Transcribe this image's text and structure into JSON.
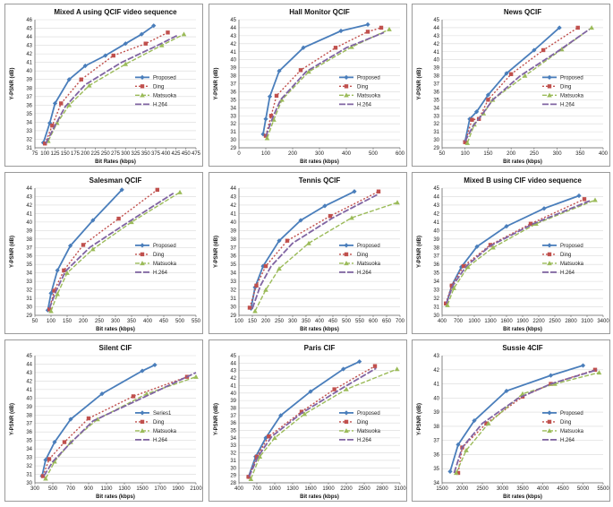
{
  "colors": {
    "proposed": "#4a7ebb",
    "ding": "#c0504d",
    "matsuoka": "#9bbb59",
    "h264": "#8064a2"
  },
  "chart_data": [
    {
      "type": "line",
      "title": "Mixed A using QCIF video sequence",
      "xlabel": "Bit Rates (kbps)",
      "ylabel": "Y-PSNR (dB)",
      "xlim": [
        75,
        475
      ],
      "ylim": [
        31,
        46
      ],
      "xticks": [
        75,
        100,
        125,
        150,
        175,
        200,
        225,
        250,
        275,
        300,
        325,
        350,
        375,
        400,
        425,
        450,
        475
      ],
      "yticks": [
        31,
        32,
        33,
        34,
        35,
        36,
        37,
        38,
        39,
        40,
        41,
        42,
        43,
        44,
        45,
        46
      ],
      "legend": "right",
      "series": [
        {
          "name": "Proposed",
          "style": "proposed",
          "x": [
            96,
            112,
            125,
            160,
            200,
            250,
            300,
            340,
            370
          ],
          "y": [
            31.6,
            33.9,
            36.2,
            39.0,
            40.6,
            41.8,
            43.2,
            44.3,
            45.3
          ]
        },
        {
          "name": "Ding",
          "style": "ding",
          "x": [
            100,
            118,
            140,
            190,
            270,
            350,
            405
          ],
          "y": [
            31.5,
            33.6,
            36.2,
            39.0,
            41.8,
            43.2,
            44.5
          ]
        },
        {
          "name": "Matsuoka",
          "style": "matsuoka",
          "x": [
            108,
            130,
            160,
            210,
            300,
            390,
            445
          ],
          "y": [
            31.8,
            33.9,
            36.0,
            38.3,
            40.8,
            43.0,
            44.3
          ]
        },
        {
          "name": "H.264",
          "style": "h264",
          "x": [
            102,
            124,
            150,
            200,
            290,
            380,
            430
          ],
          "y": [
            31.5,
            33.5,
            35.8,
            38.4,
            41.0,
            43.0,
            44.2
          ]
        }
      ]
    },
    {
      "type": "line",
      "title": "Hall Monitor QCIF",
      "xlabel": "Bit rates (kbps)",
      "ylabel": "Y-PSNR (dB)",
      "xlim": [
        0,
        600
      ],
      "ylim": [
        29,
        45
      ],
      "xticks": [
        0,
        100,
        200,
        300,
        400,
        500,
        600
      ],
      "yticks": [
        29,
        30,
        31,
        32,
        33,
        34,
        35,
        36,
        37,
        38,
        39,
        40,
        41,
        42,
        43,
        44,
        45
      ],
      "legend": "right",
      "series": [
        {
          "name": "Proposed",
          "style": "proposed",
          "x": [
            90,
            100,
            115,
            150,
            240,
            380,
            480
          ],
          "y": [
            30.7,
            32.6,
            35.4,
            38.6,
            41.5,
            43.6,
            44.4
          ]
        },
        {
          "name": "Ding",
          "style": "ding",
          "x": [
            100,
            120,
            140,
            230,
            360,
            480,
            530
          ],
          "y": [
            30.5,
            33.0,
            35.5,
            38.7,
            41.5,
            43.5,
            44.0
          ]
        },
        {
          "name": "Matsuoka",
          "style": "matsuoka",
          "x": [
            105,
            130,
            160,
            260,
            420,
            560
          ],
          "y": [
            30.2,
            32.5,
            35.0,
            38.5,
            41.6,
            43.8
          ]
        },
        {
          "name": "H.264",
          "style": "h264",
          "x": [
            100,
            125,
            155,
            250,
            400,
            540
          ],
          "y": [
            30.4,
            32.7,
            35.0,
            38.5,
            41.5,
            43.4
          ]
        }
      ]
    },
    {
      "type": "line",
      "title": "News QCIF",
      "xlabel": "Bit rates (kbps)",
      "ylabel": "Y-PSNR (dB)",
      "xlim": [
        50,
        400
      ],
      "ylim": [
        29,
        45
      ],
      "xticks": [
        50,
        100,
        150,
        200,
        250,
        300,
        350,
        400
      ],
      "yticks": [
        29,
        30,
        31,
        32,
        33,
        34,
        35,
        36,
        37,
        38,
        39,
        40,
        41,
        42,
        43,
        44,
        45
      ],
      "legend": "right",
      "series": [
        {
          "name": "Proposed",
          "style": "proposed",
          "x": [
            100,
            110,
            125,
            150,
            190,
            250,
            305
          ],
          "y": [
            29.8,
            32.6,
            33.5,
            35.6,
            38.3,
            41.2,
            44.0
          ]
        },
        {
          "name": "Ding",
          "style": "ding",
          "x": [
            100,
            115,
            130,
            150,
            200,
            270,
            345
          ],
          "y": [
            29.7,
            32.5,
            32.6,
            35.0,
            38.2,
            41.2,
            44.0
          ]
        },
        {
          "name": "Matsuoka",
          "style": "matsuoka",
          "x": [
            105,
            120,
            140,
            160,
            230,
            310,
            375
          ],
          "y": [
            29.6,
            31.9,
            33.3,
            35.0,
            38.0,
            41.3,
            44.0
          ]
        },
        {
          "name": "H.264",
          "style": "h264",
          "x": [
            100,
            118,
            135,
            160,
            220,
            300,
            370
          ],
          "y": [
            29.8,
            31.8,
            33.0,
            35.0,
            38.0,
            41.0,
            43.8
          ]
        }
      ]
    },
    {
      "type": "line",
      "title": "Salesman QCIF",
      "xlabel": "Bit rates (kbps)",
      "ylabel": "Y-PSNR (dB)",
      "xlim": [
        50,
        550
      ],
      "ylim": [
        29,
        44
      ],
      "xticks": [
        50,
        100,
        150,
        200,
        250,
        300,
        350,
        400,
        450,
        500,
        550
      ],
      "yticks": [
        29,
        30,
        31,
        32,
        33,
        34,
        35,
        36,
        37,
        38,
        39,
        40,
        41,
        42,
        43,
        44
      ],
      "legend": "right",
      "series": [
        {
          "name": "Proposed",
          "style": "proposed",
          "x": [
            90,
            100,
            120,
            160,
            230,
            320
          ],
          "y": [
            29.6,
            31.6,
            34.3,
            37.2,
            40.2,
            43.8
          ]
        },
        {
          "name": "Ding",
          "style": "ding",
          "x": [
            95,
            110,
            140,
            200,
            310,
            430
          ],
          "y": [
            29.7,
            31.9,
            34.3,
            37.3,
            40.4,
            43.8
          ]
        },
        {
          "name": "Matsuoka",
          "style": "matsuoka",
          "x": [
            100,
            120,
            150,
            230,
            350,
            500
          ],
          "y": [
            29.5,
            31.5,
            34.0,
            36.8,
            40.0,
            43.5
          ]
        },
        {
          "name": "H.264",
          "style": "h264",
          "x": [
            95,
            115,
            145,
            220,
            340,
            480
          ],
          "y": [
            29.8,
            31.8,
            34.2,
            37.0,
            40.0,
            43.4
          ]
        }
      ]
    },
    {
      "type": "line",
      "title": "Tennis QCIF",
      "xlabel": "Bit rates (kbps)",
      "ylabel": "Y-PSNR (dB)",
      "xlim": [
        100,
        700
      ],
      "ylim": [
        29,
        44
      ],
      "xticks": [
        100,
        150,
        200,
        250,
        300,
        350,
        400,
        450,
        500,
        550,
        600,
        650,
        700
      ],
      "yticks": [
        29,
        30,
        31,
        32,
        33,
        34,
        35,
        36,
        37,
        38,
        39,
        40,
        41,
        42,
        43,
        44
      ],
      "legend": "right",
      "series": [
        {
          "name": "Proposed",
          "style": "proposed",
          "x": [
            145,
            160,
            190,
            250,
            330,
            420,
            530
          ],
          "y": [
            29.8,
            32.3,
            34.8,
            37.8,
            40.2,
            41.9,
            43.6
          ]
        },
        {
          "name": "Ding",
          "style": "ding",
          "x": [
            140,
            165,
            200,
            280,
            440,
            620
          ],
          "y": [
            29.9,
            32.5,
            34.8,
            37.8,
            40.7,
            43.6
          ]
        },
        {
          "name": "Matsuoka",
          "style": "matsuoka",
          "x": [
            160,
            200,
            250,
            360,
            520,
            690
          ],
          "y": [
            29.5,
            32.0,
            34.5,
            37.5,
            40.5,
            42.3
          ]
        },
        {
          "name": "H.264",
          "style": "h264",
          "x": [
            150,
            180,
            220,
            300,
            450,
            620
          ],
          "y": [
            29.8,
            32.5,
            34.8,
            37.5,
            40.5,
            43.3
          ]
        }
      ]
    },
    {
      "type": "line",
      "title": "Mixed B using CIF video sequence",
      "xlabel": "Bit rates (kbps)",
      "ylabel": "Y-PSNR (dB)",
      "xlim": [
        400,
        3400
      ],
      "ylim": [
        30,
        45
      ],
      "xticks": [
        400,
        700,
        1000,
        1300,
        1600,
        1900,
        2200,
        2500,
        2800,
        3100,
        3400
      ],
      "yticks": [
        30,
        31,
        32,
        33,
        34,
        35,
        36,
        37,
        38,
        39,
        40,
        41,
        42,
        43,
        44,
        45
      ],
      "legend": "right",
      "series": [
        {
          "name": "Proposed",
          "style": "proposed",
          "x": [
            480,
            580,
            760,
            1050,
            1600,
            2300,
            2950
          ],
          "y": [
            31.3,
            33.5,
            35.7,
            38.1,
            40.5,
            42.6,
            44.1
          ]
        },
        {
          "name": "Ding",
          "style": "ding",
          "x": [
            470,
            580,
            800,
            1300,
            2050,
            3050
          ],
          "y": [
            31.4,
            33.5,
            35.8,
            38.3,
            40.8,
            43.7
          ]
        },
        {
          "name": "Matsuoka",
          "style": "matsuoka",
          "x": [
            500,
            620,
            880,
            1350,
            2150,
            3250
          ],
          "y": [
            31.2,
            33.2,
            35.7,
            38.0,
            40.8,
            43.6
          ]
        },
        {
          "name": "H.264",
          "style": "h264",
          "x": [
            480,
            600,
            850,
            1300,
            2100,
            3150
          ],
          "y": [
            31.4,
            33.5,
            35.8,
            38.2,
            40.8,
            43.5
          ]
        }
      ]
    },
    {
      "type": "line",
      "title": "Silent CIF",
      "xlabel": "Bit rates (kbps)",
      "ylabel": "Y-PSNR (dB)",
      "xlim": [
        300,
        2100
      ],
      "ylim": [
        30,
        45
      ],
      "xticks": [
        300,
        500,
        700,
        900,
        1100,
        1300,
        1500,
        1700,
        1900,
        2100
      ],
      "yticks": [
        30,
        31,
        32,
        33,
        34,
        35,
        36,
        37,
        38,
        39,
        40,
        41,
        42,
        43,
        44,
        45
      ],
      "legend": "right",
      "series": [
        {
          "name": "Series1",
          "style": "proposed",
          "x": [
            380,
            420,
            520,
            700,
            1050,
            1500,
            1640
          ],
          "y": [
            30.8,
            32.7,
            34.8,
            37.5,
            40.5,
            43.2,
            43.9
          ]
        },
        {
          "name": "Ding",
          "style": "ding",
          "x": [
            390,
            460,
            630,
            900,
            1400,
            2000
          ],
          "y": [
            30.8,
            32.8,
            34.8,
            37.6,
            40.2,
            42.5
          ]
        },
        {
          "name": "Matsuoka",
          "style": "matsuoka",
          "x": [
            420,
            520,
            700,
            1000,
            1550,
            2100
          ],
          "y": [
            30.5,
            32.5,
            34.8,
            37.5,
            40.5,
            42.5
          ]
        },
        {
          "name": "H.264",
          "style": "h264",
          "x": [
            400,
            500,
            680,
            950,
            1500,
            2100
          ],
          "y": [
            30.8,
            32.5,
            34.5,
            37.3,
            40.0,
            43.0
          ]
        }
      ]
    },
    {
      "type": "line",
      "title": "Paris CIF",
      "xlabel": "Bit rates (kbps)",
      "ylabel": "Y-PSNR (dB)",
      "xlim": [
        400,
        3100
      ],
      "ylim": [
        28,
        45
      ],
      "xticks": [
        400,
        700,
        1000,
        1300,
        1600,
        1900,
        2200,
        2500,
        2800,
        3100
      ],
      "yticks": [
        28,
        29,
        30,
        31,
        32,
        33,
        34,
        35,
        36,
        37,
        38,
        39,
        40,
        41,
        42,
        43,
        44,
        45
      ],
      "legend": "right",
      "series": [
        {
          "name": "Proposed",
          "style": "proposed",
          "x": [
            560,
            680,
            850,
            1100,
            1600,
            2150,
            2420
          ],
          "y": [
            28.8,
            31.5,
            34.0,
            37.0,
            40.2,
            43.2,
            44.2
          ]
        },
        {
          "name": "Ding",
          "style": "ding",
          "x": [
            560,
            700,
            900,
            1450,
            2000,
            2680
          ],
          "y": [
            28.8,
            31.5,
            34.2,
            37.5,
            40.5,
            43.6
          ]
        },
        {
          "name": "Matsuoka",
          "style": "matsuoka",
          "x": [
            600,
            750,
            1000,
            1500,
            2200,
            3050
          ],
          "y": [
            28.5,
            31.5,
            34.0,
            37.2,
            40.5,
            43.2
          ]
        },
        {
          "name": "H.264",
          "style": "h264",
          "x": [
            570,
            720,
            950,
            1450,
            2100,
            2700
          ],
          "y": [
            28.8,
            31.5,
            34.2,
            37.3,
            40.5,
            43.3
          ]
        }
      ]
    },
    {
      "type": "line",
      "title": "Sussie 4CIF",
      "xlabel": "Bit rates (kbps)",
      "ylabel": "Y-PSNR (dB)",
      "xlim": [
        1500,
        5500
      ],
      "ylim": [
        34,
        43
      ],
      "xticks": [
        1500,
        2000,
        2500,
        3000,
        3500,
        4000,
        4500,
        5000,
        5500
      ],
      "yticks": [
        34,
        35,
        36,
        37,
        38,
        39,
        40,
        41,
        42,
        43
      ],
      "legend": "right",
      "series": [
        {
          "name": "Proposed",
          "style": "proposed",
          "x": [
            1700,
            1900,
            2300,
            3100,
            4200,
            5000
          ],
          "y": [
            34.8,
            36.7,
            38.4,
            40.5,
            41.6,
            42.3
          ]
        },
        {
          "name": "Ding",
          "style": "ding",
          "x": [
            1900,
            2000,
            2600,
            3500,
            4200,
            5300
          ],
          "y": [
            34.7,
            36.5,
            38.2,
            40.1,
            41.0,
            42.0
          ]
        },
        {
          "name": "Matsuoka",
          "style": "matsuoka",
          "x": [
            1850,
            2100,
            2650,
            3500,
            4300,
            5400
          ],
          "y": [
            34.7,
            36.3,
            38.2,
            40.3,
            41.0,
            41.8
          ]
        },
        {
          "name": "H.264",
          "style": "h264",
          "x": [
            1800,
            2000,
            2500,
            3400,
            4200,
            5350
          ],
          "y": [
            34.7,
            36.5,
            38.2,
            40.0,
            41.0,
            42.0
          ]
        }
      ]
    }
  ]
}
